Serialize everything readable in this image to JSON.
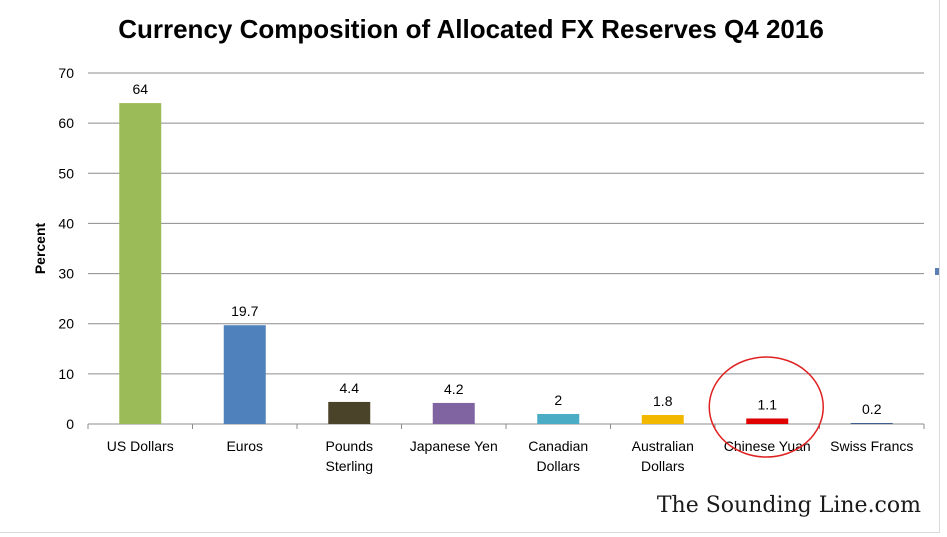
{
  "chart_data": {
    "type": "bar",
    "title": "Currency Composition of Allocated FX Reserves Q4 2016",
    "ylabel": "Percent",
    "xlabel": "",
    "ylim": [
      0,
      70
    ],
    "yticks": [
      0,
      10,
      20,
      30,
      40,
      50,
      60,
      70
    ],
    "grid": true,
    "legend": "none",
    "categories": [
      [
        "US Dollars"
      ],
      [
        "Euros"
      ],
      [
        "Pounds",
        "Sterling"
      ],
      [
        "Japanese Yen"
      ],
      [
        "Canadian",
        "Dollars"
      ],
      [
        "Australian",
        "Dollars"
      ],
      [
        "Chinese Yuan"
      ],
      [
        "Swiss Francs"
      ]
    ],
    "values": [
      64,
      19.7,
      4.4,
      4.2,
      2,
      1.8,
      1.1,
      0.2
    ],
    "data_labels": [
      "64",
      "19.7",
      "4.4",
      "4.2",
      "2",
      "1.8",
      "1.1",
      "0.2"
    ],
    "colors": [
      "#9bbb59",
      "#4f81bd",
      "#4a4329",
      "#8064a2",
      "#4bacc6",
      "#f2b800",
      "#e00000",
      "#3f5f8f"
    ],
    "highlight": {
      "category_index": 6,
      "shape": "circle",
      "color": "#e02020"
    }
  },
  "watermark": "The Sounding Line.com"
}
